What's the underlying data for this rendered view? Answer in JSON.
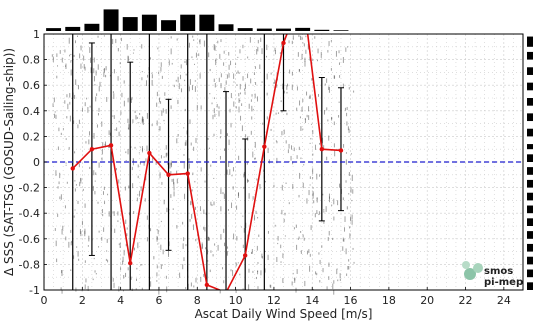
{
  "chart_data": {
    "type": "line",
    "xlabel": "Ascat Daily Wind Speed [m/s]",
    "ylabel": "Δ SSS (SAT-TSG (GOSUD-Sailing-ship))",
    "xlim": [
      0,
      25
    ],
    "ylim": [
      -1,
      1
    ],
    "x_ticks": [
      "0",
      "2",
      "4",
      "6",
      "8",
      "10",
      "12",
      "14",
      "16",
      "18",
      "20",
      "22",
      "24"
    ],
    "y_ticks": [
      "-1",
      "-0.8",
      "-0.6",
      "-0.4",
      "-0.2",
      "0",
      "0.2",
      "0.4",
      "0.6",
      "0.8",
      "1"
    ],
    "grid": true,
    "reference_line": {
      "y": 0,
      "color": "#1f1fcf",
      "style": "dashed"
    },
    "series": [
      {
        "color": "#e01010",
        "x": [
          1.5,
          2.5,
          3.5,
          4.5,
          5.5,
          6.5,
          7.5,
          8.5,
          9.5,
          10.5,
          11.5,
          12.5,
          13.5,
          14.5,
          15.5
        ],
        "y": [
          -0.05,
          0.1,
          0.13,
          -0.79,
          0.07,
          -0.1,
          -0.09,
          -0.96,
          -1.02,
          -0.73,
          0.12,
          0.93,
          1.32,
          0.1,
          0.09
        ],
        "error_low": [
          -1.5,
          -0.73,
          -1.4,
          -1.6,
          -1.3,
          -0.69,
          -1.5,
          -1.5,
          -2.0,
          -1.6,
          -1.4,
          0.4,
          1.1,
          -0.46,
          -0.38
        ],
        "error_high": [
          1.2,
          0.93,
          1.2,
          0.78,
          1.2,
          0.49,
          1.2,
          1.2,
          0.55,
          0.18,
          1.2,
          1.2,
          1.5,
          0.66,
          0.58
        ]
      }
    ],
    "top_histogram": {
      "x": [
        0.5,
        1.5,
        2.5,
        3.5,
        4.5,
        5.5,
        6.5,
        7.5,
        8.5,
        9.5,
        10.5,
        11.5,
        12.5,
        13.5,
        14.5,
        15.5
      ],
      "values": [
        0.12,
        0.17,
        0.3,
        0.9,
        0.58,
        0.68,
        0.45,
        0.68,
        0.68,
        0.28,
        0.12,
        0.1,
        0.1,
        0.13,
        0.05,
        0.03
      ]
    },
    "colors": {
      "line": "#e01010",
      "reference": "#1f1fcf",
      "bars": "#000000",
      "errorbars": "#000000",
      "scatter": "#555555",
      "grid": "#cccccc"
    }
  },
  "logo": {
    "line1": "smos",
    "line2": "pi-mep",
    "color": "#6aa888"
  }
}
